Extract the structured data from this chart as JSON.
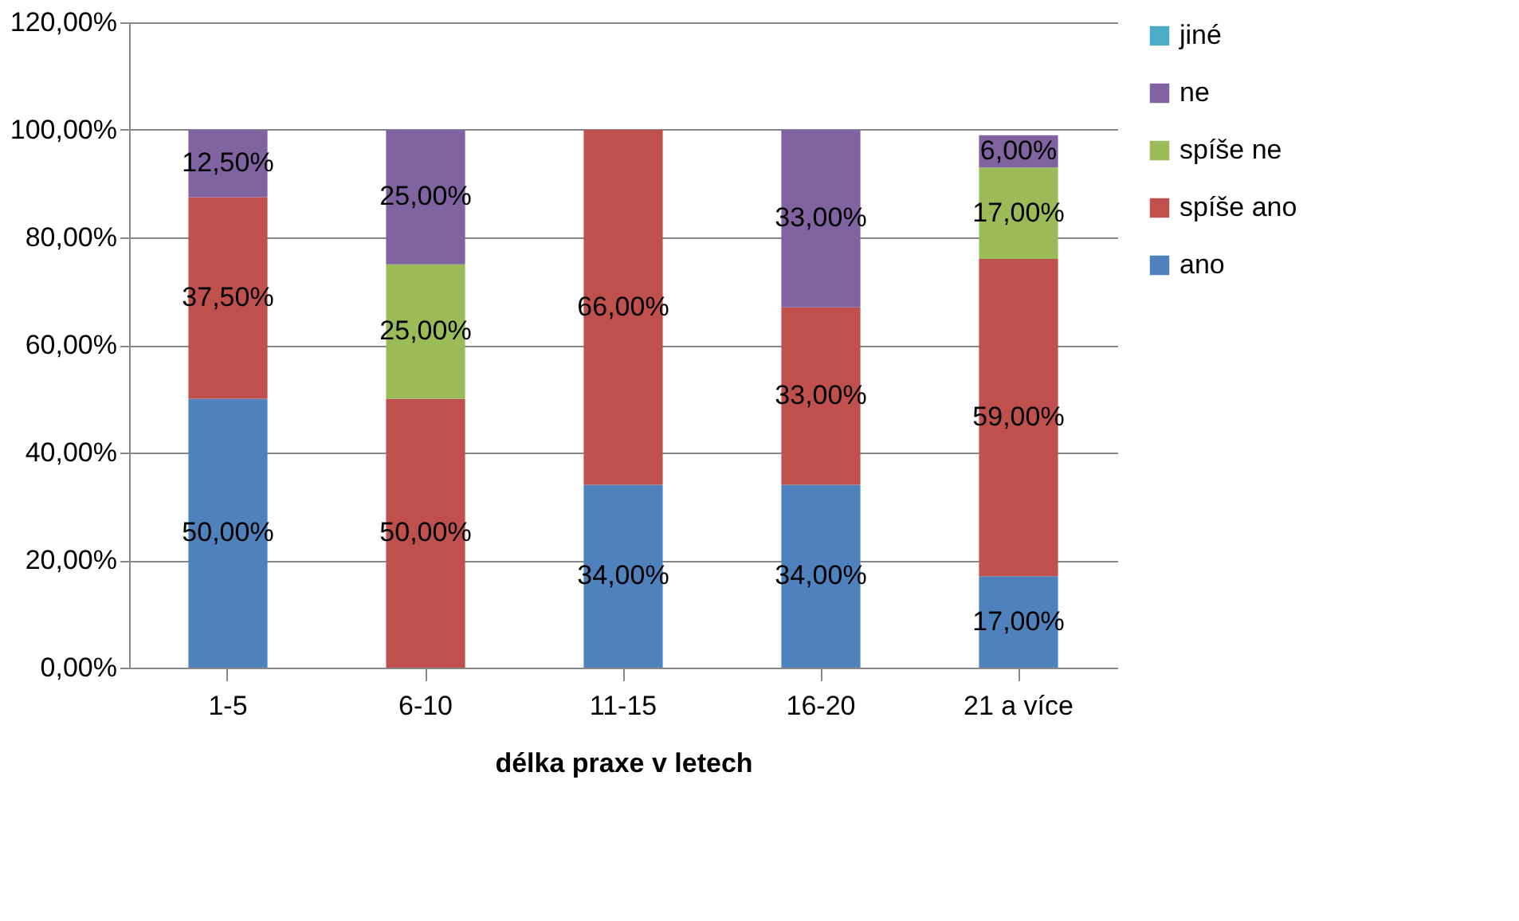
{
  "chart_data": {
    "type": "bar",
    "stacked": true,
    "xlabel": "délka praxe v letech",
    "categories": [
      "1-5",
      "6-10",
      "11-15",
      "16-20",
      "21 a více"
    ],
    "series": [
      {
        "name": "ano",
        "color": "#4f81bd",
        "values": [
          50,
          0,
          34,
          34,
          17
        ],
        "value_labels": [
          "50,00%",
          null,
          "34,00%",
          "34,00%",
          "17,00%"
        ]
      },
      {
        "name": "spíše ano",
        "color": "#c0504d",
        "values": [
          37.5,
          50,
          66,
          33,
          59
        ],
        "value_labels": [
          "37,50%",
          "50,00%",
          "66,00%",
          "33,00%",
          "59,00%"
        ]
      },
      {
        "name": "spíše ne",
        "color": "#9bbb59",
        "values": [
          0,
          25,
          0,
          0,
          17
        ],
        "value_labels": [
          null,
          "25,00%",
          null,
          null,
          "17,00%"
        ]
      },
      {
        "name": "ne",
        "color": "#8064a2",
        "values": [
          12.5,
          25,
          0,
          33,
          6
        ],
        "value_labels": [
          "12,50%",
          "25,00%",
          null,
          "33,00%",
          "6,00%"
        ]
      },
      {
        "name": "jiné",
        "color": "#4bacc6",
        "values": [
          0,
          0,
          0,
          0,
          0
        ],
        "value_labels": [
          null,
          null,
          null,
          null,
          null
        ]
      }
    ],
    "ylim": [
      0,
      120
    ],
    "yticks": [
      {
        "value": 0,
        "label": "0,00%"
      },
      {
        "value": 20,
        "label": "20,00%"
      },
      {
        "value": 40,
        "label": "40,00%"
      },
      {
        "value": 60,
        "label": "60,00%"
      },
      {
        "value": 80,
        "label": "80,00%"
      },
      {
        "value": 100,
        "label": "100,00%"
      },
      {
        "value": 120,
        "label": "120,00%"
      }
    ],
    "grid": "y",
    "legend": "right"
  }
}
